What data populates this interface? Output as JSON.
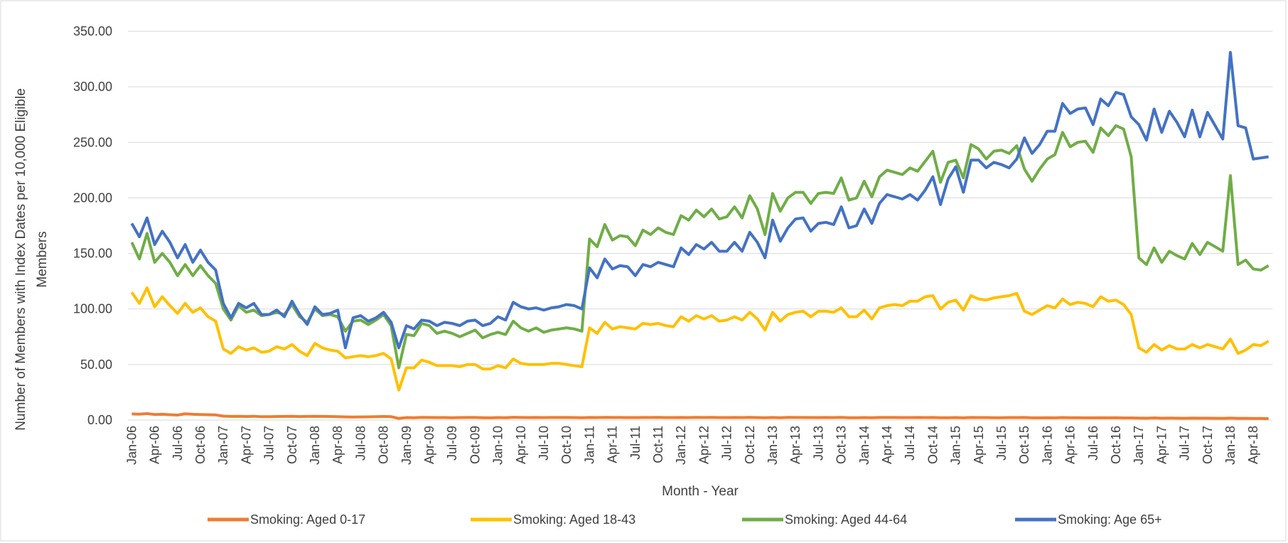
{
  "chart_data": {
    "type": "line",
    "x_label": "Month - Year",
    "y_label": "Number of Members with Index Dates per 10,000 Eligible Members",
    "categories": [
      "Jan-06",
      null,
      null,
      "Apr-06",
      null,
      null,
      "Jul-06",
      null,
      null,
      "Oct-06",
      null,
      null,
      "Jan-07",
      null,
      null,
      "Apr-07",
      null,
      null,
      "Jul-07",
      null,
      null,
      "Oct-07",
      null,
      null,
      "Jan-08",
      null,
      null,
      "Apr-08",
      null,
      null,
      "Jul-08",
      null,
      null,
      "Oct-08",
      null,
      null,
      "Jan-09",
      null,
      null,
      "Apr-09",
      null,
      null,
      "Jul-09",
      null,
      null,
      "Oct-09",
      null,
      null,
      "Jan-10",
      null,
      null,
      "Apr-10",
      null,
      null,
      "Jul-10",
      null,
      null,
      "Oct-10",
      null,
      null,
      "Jan-11",
      null,
      null,
      "Apr-11",
      null,
      null,
      "Jul-11",
      null,
      null,
      "Oct-11",
      null,
      null,
      "Jan-12",
      null,
      null,
      "Apr-12",
      null,
      null,
      "Jul-12",
      null,
      null,
      "Oct-12",
      null,
      null,
      "Jan-13",
      null,
      null,
      "Apr-13",
      null,
      null,
      "Jul-13",
      null,
      null,
      "Oct-13",
      null,
      null,
      "Jan-14",
      null,
      null,
      "Apr-14",
      null,
      null,
      "Jul-14",
      null,
      null,
      "Oct-14",
      null,
      null,
      "Jan-15",
      null,
      null,
      "Apr-15",
      null,
      null,
      "Jul-15",
      null,
      null,
      "Oct-15",
      null,
      null,
      "Jan-16",
      null,
      null,
      "Apr-16",
      null,
      null,
      "Jul-16",
      null,
      null,
      "Oct-16",
      null,
      null,
      "Jan-17",
      null,
      null,
      "Apr-17",
      null,
      null,
      "Jul-17",
      null,
      null,
      "Oct-17",
      null,
      null,
      "Jan-18",
      null,
      null,
      "Apr-18",
      null,
      null
    ],
    "series": [
      {
        "name": "Smoking: Aged 0-17",
        "color": "#ed7d31",
        "values": [
          5.5,
          5.3,
          5.8,
          5.0,
          5.2,
          4.8,
          4.5,
          5.6,
          5.2,
          5.0,
          4.8,
          4.6,
          3.5,
          3.3,
          3.4,
          3.2,
          3.4,
          3.0,
          3.0,
          3.2,
          3.3,
          3.4,
          3.1,
          3.3,
          3.4,
          3.3,
          3.2,
          3.0,
          2.8,
          2.7,
          2.8,
          2.9,
          3.0,
          3.2,
          3.0,
          1.5,
          2.2,
          2.1,
          2.4,
          2.3,
          2.2,
          2.2,
          2.1,
          2.2,
          2.3,
          2.3,
          2.1,
          2.0,
          2.2,
          2.1,
          2.5,
          2.3,
          2.2,
          2.3,
          2.2,
          2.3,
          2.3,
          2.3,
          2.2,
          2.1,
          2.3,
          2.2,
          2.4,
          2.3,
          2.3,
          2.2,
          2.2,
          2.3,
          2.3,
          2.4,
          2.2,
          2.2,
          2.3,
          2.2,
          2.4,
          2.3,
          2.4,
          2.2,
          2.2,
          2.3,
          2.2,
          2.4,
          2.2,
          2.1,
          2.3,
          2.1,
          2.4,
          2.3,
          2.3,
          2.2,
          2.2,
          2.3,
          2.2,
          2.4,
          2.1,
          2.1,
          2.2,
          2.1,
          2.3,
          2.3,
          2.3,
          2.2,
          2.2,
          2.3,
          2.2,
          2.3,
          2.1,
          2.1,
          2.2,
          2.0,
          2.3,
          2.2,
          2.2,
          2.1,
          2.1,
          2.2,
          2.2,
          2.3,
          2.0,
          2.0,
          2.1,
          2.0,
          2.2,
          2.1,
          2.1,
          2.0,
          2.0,
          2.1,
          2.0,
          2.1,
          1.9,
          1.9,
          1.8,
          1.7,
          1.9,
          1.7,
          1.8,
          1.7,
          1.6,
          1.8,
          1.7,
          1.7,
          1.6,
          1.5,
          1.8,
          1.5,
          1.5,
          1.4,
          1.4,
          1.3
        ]
      },
      {
        "name": "Smoking: Aged 18-43",
        "color": "#ffc000",
        "values": [
          115,
          105,
          119,
          102,
          111,
          103,
          96,
          105,
          97,
          101,
          93,
          89,
          64,
          60,
          66,
          63,
          65,
          61,
          62,
          66,
          64,
          68,
          62,
          58,
          69,
          65,
          63,
          62,
          56,
          57,
          58,
          57,
          58,
          60,
          55,
          27,
          47,
          47,
          54,
          52,
          49,
          49,
          49,
          48,
          50,
          50,
          46,
          46,
          49,
          47,
          55,
          51,
          50,
          50,
          50,
          51,
          51,
          50,
          49,
          48,
          83,
          78,
          88,
          82,
          84,
          83,
          82,
          87,
          86,
          87,
          85,
          84,
          93,
          89,
          94,
          91,
          94,
          89,
          90,
          93,
          90,
          97,
          91,
          81,
          97,
          89,
          95,
          97,
          98,
          93,
          98,
          98,
          97,
          101,
          93,
          93,
          99,
          91,
          101,
          103,
          104,
          103,
          107,
          107,
          111,
          112,
          100,
          106,
          108,
          99,
          112,
          109,
          108,
          110,
          111,
          112,
          114,
          98,
          95,
          99,
          103,
          101,
          109,
          104,
          106,
          105,
          102,
          111,
          107,
          108,
          104,
          95,
          65,
          61,
          68,
          63,
          67,
          64,
          64,
          68,
          65,
          68,
          66,
          64,
          73,
          60,
          63,
          68,
          67,
          71
        ]
      },
      {
        "name": "Smoking: Aged 44-64",
        "color": "#70ad47",
        "values": [
          160,
          145,
          168,
          142,
          150,
          142,
          130,
          140,
          130,
          139,
          130,
          123,
          100,
          90,
          103,
          97,
          99,
          94,
          95,
          97,
          95,
          104,
          93,
          88,
          100,
          94,
          95,
          93,
          80,
          89,
          90,
          86,
          90,
          95,
          85,
          47,
          77,
          76,
          87,
          85,
          78,
          80,
          78,
          75,
          78,
          81,
          74,
          77,
          79,
          77,
          89,
          83,
          80,
          83,
          79,
          81,
          82,
          83,
          82,
          80,
          163,
          156,
          176,
          162,
          166,
          165,
          157,
          171,
          167,
          173,
          169,
          167,
          184,
          180,
          189,
          183,
          190,
          181,
          183,
          192,
          182,
          202,
          190,
          167,
          204,
          188,
          200,
          205,
          205,
          195,
          204,
          205,
          204,
          218,
          198,
          200,
          215,
          201,
          219,
          225,
          223,
          221,
          227,
          224,
          233,
          242,
          214,
          232,
          234,
          218,
          248,
          244,
          235,
          242,
          243,
          240,
          247,
          226,
          215,
          226,
          235,
          239,
          259,
          246,
          250,
          251,
          241,
          263,
          256,
          265,
          262,
          237,
          146,
          140,
          155,
          142,
          152,
          148,
          145,
          159,
          149,
          160,
          156,
          152,
          220,
          140,
          144,
          136,
          135,
          139
        ]
      },
      {
        "name": "Smoking: Age 65+",
        "color": "#4472c4",
        "values": [
          177,
          165,
          182,
          158,
          170,
          160,
          146,
          158,
          142,
          153,
          142,
          135,
          105,
          92,
          105,
          101,
          105,
          95,
          95,
          99,
          93,
          107,
          95,
          86,
          102,
          95,
          96,
          99,
          65,
          92,
          94,
          89,
          92,
          97,
          88,
          65,
          85,
          82,
          90,
          89,
          85,
          88,
          87,
          85,
          89,
          90,
          85,
          87,
          93,
          90,
          106,
          102,
          100,
          101,
          99,
          101,
          102,
          104,
          103,
          100,
          137,
          128,
          145,
          136,
          139,
          138,
          130,
          140,
          138,
          142,
          140,
          138,
          155,
          149,
          158,
          154,
          160,
          152,
          152,
          160,
          152,
          169,
          160,
          146,
          180,
          161,
          173,
          181,
          182,
          170,
          177,
          178,
          176,
          192,
          173,
          175,
          190,
          177,
          195,
          203,
          201,
          199,
          203,
          198,
          207,
          219,
          194,
          217,
          228,
          205,
          234,
          234,
          227,
          232,
          230,
          227,
          235,
          254,
          240,
          248,
          260,
          260,
          285,
          276,
          280,
          281,
          266,
          289,
          283,
          295,
          293,
          273,
          266,
          252,
          280,
          259,
          278,
          268,
          255,
          279,
          255,
          277,
          265,
          253,
          331,
          265,
          263,
          235,
          236,
          237
        ]
      }
    ],
    "ylim": [
      0,
      350
    ],
    "yticks": [
      {
        "value": 0,
        "label": "0.00"
      },
      {
        "value": 50,
        "label": "50.00"
      },
      {
        "value": 100,
        "label": "100.00"
      },
      {
        "value": 150,
        "label": "150.00"
      },
      {
        "value": 200,
        "label": "200.00"
      },
      {
        "value": 250,
        "label": "250.00"
      },
      {
        "value": 300,
        "label": "300.00"
      },
      {
        "value": 350,
        "label": "350.00"
      }
    ],
    "grid": true,
    "legend": "bottom"
  }
}
